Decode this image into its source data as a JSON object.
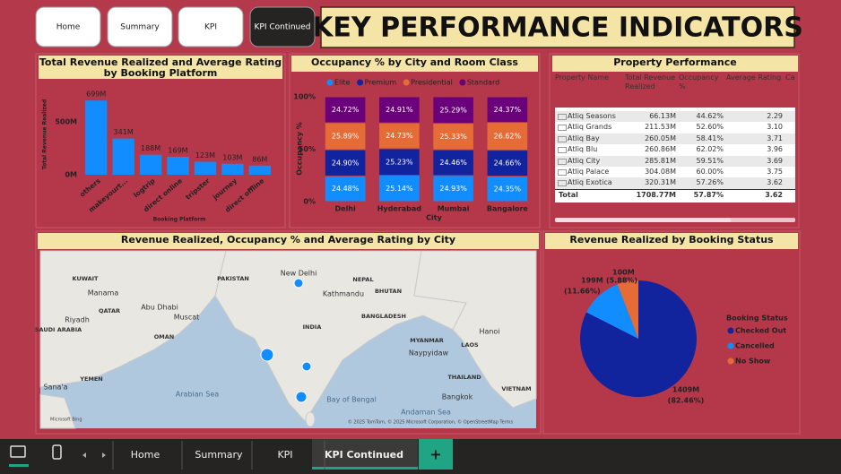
{
  "nav": {
    "buttons": [
      "Home",
      "Summary",
      "KPI",
      "KPI Continued"
    ]
  },
  "header": {
    "title": "KEY PERFORMANCE INDICATORS"
  },
  "chart_data": [
    {
      "type": "bar",
      "title": "Total Revenue Realized and Average Rating by Booking Platform",
      "y_label": "Total Revenue Realized",
      "x_label": "Booking Platform",
      "categories": [
        "others",
        "makeyourt...",
        "logtrip",
        "direct online",
        "tripster",
        "journey",
        "direct offline"
      ],
      "values": [
        699,
        341,
        188,
        169,
        123,
        103,
        86
      ],
      "value_labels": [
        "699M",
        "341M",
        "188M",
        "169M",
        "123M",
        "103M",
        "86M"
      ],
      "color": "#118dff",
      "ylim": [
        0,
        760
      ],
      "yticks": [
        {
          "value": 0,
          "label": "0M"
        },
        {
          "value": 500,
          "label": "500M"
        }
      ]
    },
    {
      "type": "stackedbar",
      "title": "Occupancy % by City and Room Class",
      "y_label": "Occupancy %",
      "x_label": "City",
      "categories": [
        "Delhi",
        "Hyderabad",
        "Mumbai",
        "Bangalore"
      ],
      "series": [
        {
          "name": "Elite",
          "color": "#118dff",
          "values": [
            24.48,
            25.14,
            24.93,
            24.35
          ],
          "value_labels": [
            "24.48%",
            "25.14%",
            "24.93%",
            "24.35%"
          ]
        },
        {
          "name": "Premium",
          "color": "#12239e",
          "values": [
            24.9,
            25.23,
            24.46,
            24.66
          ],
          "value_labels": [
            "24.90%",
            "25.23%",
            "24.46%",
            "24.66%"
          ]
        },
        {
          "name": "Presidential",
          "color": "#e66c37",
          "values": [
            25.89,
            24.73,
            25.33,
            26.62
          ],
          "value_labels": [
            "25.89%",
            "24.73%",
            "25.33%",
            "26.62%"
          ]
        },
        {
          "name": "Standard",
          "color": "#6b007b",
          "values": [
            24.72,
            24.91,
            25.29,
            24.37
          ],
          "value_labels": [
            "24.72%",
            "24.91%",
            "25.29%",
            "24.37%"
          ]
        }
      ],
      "ylim": [
        0,
        100
      ],
      "yticks": [
        {
          "value": 0,
          "label": "0%"
        },
        {
          "value": 50,
          "label": "50%"
        },
        {
          "value": 100,
          "label": "100%"
        }
      ]
    },
    {
      "type": "pie",
      "title": "Revenue Realized by Booking Status",
      "legend_title": "Booking Status",
      "categories": [
        "Checked Out",
        "Cancelled",
        "No Show"
      ],
      "values": [
        1409,
        199,
        100
      ],
      "value_labels": [
        "1409M",
        "199M",
        "100M"
      ],
      "percent_labels": [
        "(82.46%)",
        "(11.66%)",
        "(5.88%)"
      ],
      "colors": [
        "#12239e",
        "#118dff",
        "#e66c37"
      ]
    }
  ],
  "table": {
    "title": "Property Performance",
    "columns": [
      "Property Name",
      "Total Revenue Realized",
      "Occupancy %",
      "Average Rating",
      "Ca"
    ],
    "rows": [
      [
        "Atliq Seasons",
        "66.13M",
        "44.62%",
        "2.29"
      ],
      [
        "Atliq Grands",
        "211.53M",
        "52.60%",
        "3.10"
      ],
      [
        "Atliq Bay",
        "260.05M",
        "58.41%",
        "3.71"
      ],
      [
        "Atliq Blu",
        "260.86M",
        "62.02%",
        "3.96"
      ],
      [
        "Atliq City",
        "285.81M",
        "59.51%",
        "3.69"
      ],
      [
        "Atliq Palace",
        "304.08M",
        "60.00%",
        "3.75"
      ],
      [
        "Atliq Exotica",
        "320.31M",
        "57.26%",
        "3.62"
      ]
    ],
    "total": [
      "Total",
      "1708.77M",
      "57.87%",
      "3.62"
    ]
  },
  "map": {
    "title": "Revenue Realized, Occupancy % and Average Rating by City",
    "labels": [
      "KUWAIT",
      "Manama",
      "QATAR",
      "Riyadh",
      "SAUDI ARABIA",
      "Abu Dhabi",
      "Muscat",
      "OMAN",
      "YEMEN",
      "Sana'a",
      "Arabian Sea",
      "PAKISTAN",
      "New Delhi",
      "NEPAL",
      "Kathmandu",
      "BHUTAN",
      "BANGLADESH",
      "INDIA",
      "MYANMAR",
      "Naypyidaw",
      "LAOS",
      "Hanoi",
      "THAILAND",
      "Bangkok",
      "VIETNAM",
      "Bay of Bengal",
      "Andaman Sea"
    ],
    "credit": "Microsoft Bing",
    "attribution": "© 2025 TomTom, © 2025 Microsoft Corporation, © OpenStreetMap  Terms"
  },
  "tabs": [
    "Home",
    "Summary",
    "KPI",
    "KPI Continued",
    "+"
  ]
}
